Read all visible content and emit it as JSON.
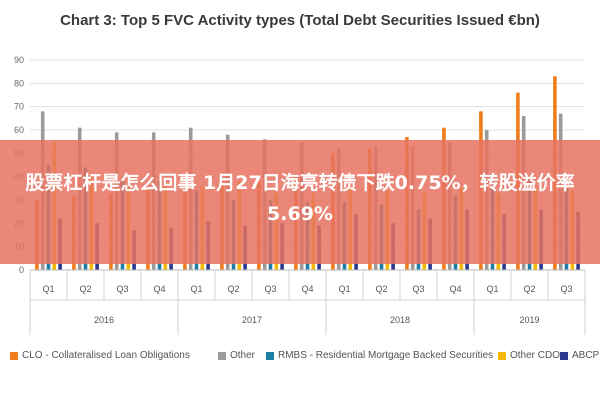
{
  "chart_data": {
    "type": "bar",
    "title": "Chart 3: Top 5 FVC Activity types (Total Debt Securities Issued €bn)",
    "xlabel": "",
    "ylabel": "",
    "ylim": [
      0,
      90
    ],
    "yticks": [
      0,
      10,
      20,
      30,
      40,
      50,
      60,
      70,
      80,
      90
    ],
    "grid": true,
    "legend_position": "bottom",
    "categories": [
      "Q1",
      "Q2",
      "Q3",
      "Q4",
      "Q1",
      "Q2",
      "Q3",
      "Q4",
      "Q1",
      "Q2",
      "Q3",
      "Q4",
      "Q1",
      "Q2",
      "Q3"
    ],
    "years": [
      {
        "label": "2016",
        "span": 4
      },
      {
        "label": "2017",
        "span": 4
      },
      {
        "label": "2018",
        "span": 4
      },
      {
        "label": "2019",
        "span": 3
      }
    ],
    "series": [
      {
        "name": "CLO - Collateralised Loan Obligations",
        "color": "#f07d1b",
        "values": [
          30,
          32,
          33,
          35,
          36,
          37,
          38,
          40,
          50,
          52,
          57,
          61,
          68,
          76,
          83
        ]
      },
      {
        "name": "Other",
        "color": "#9b9b9b",
        "values": [
          68,
          61,
          59,
          59,
          61,
          58,
          56,
          55,
          52,
          53,
          53,
          55,
          60,
          66,
          67
        ]
      },
      {
        "name": "RMBS - Residential Mortgage Backed Securities",
        "color": "#1f7ea4",
        "values": [
          45,
          44,
          38,
          38,
          34,
          30,
          30,
          29,
          29,
          28,
          26,
          32,
          38,
          39,
          35
        ]
      },
      {
        "name": "Other CDO",
        "color": "#f5b800",
        "values": [
          55,
          40,
          36,
          37,
          36,
          38,
          33,
          33,
          35,
          34,
          33,
          35,
          33,
          36,
          34
        ]
      },
      {
        "name": "ABCP",
        "color": "#2b3a8f",
        "values": [
          22,
          20,
          17,
          18,
          21,
          19,
          20,
          19,
          24,
          20,
          22,
          26,
          24,
          26,
          25
        ]
      }
    ]
  },
  "overlay": {
    "text": "股票杠杆是怎么回事 1月27日海亮转债下跌0.75%，转股溢价率5.69%"
  }
}
